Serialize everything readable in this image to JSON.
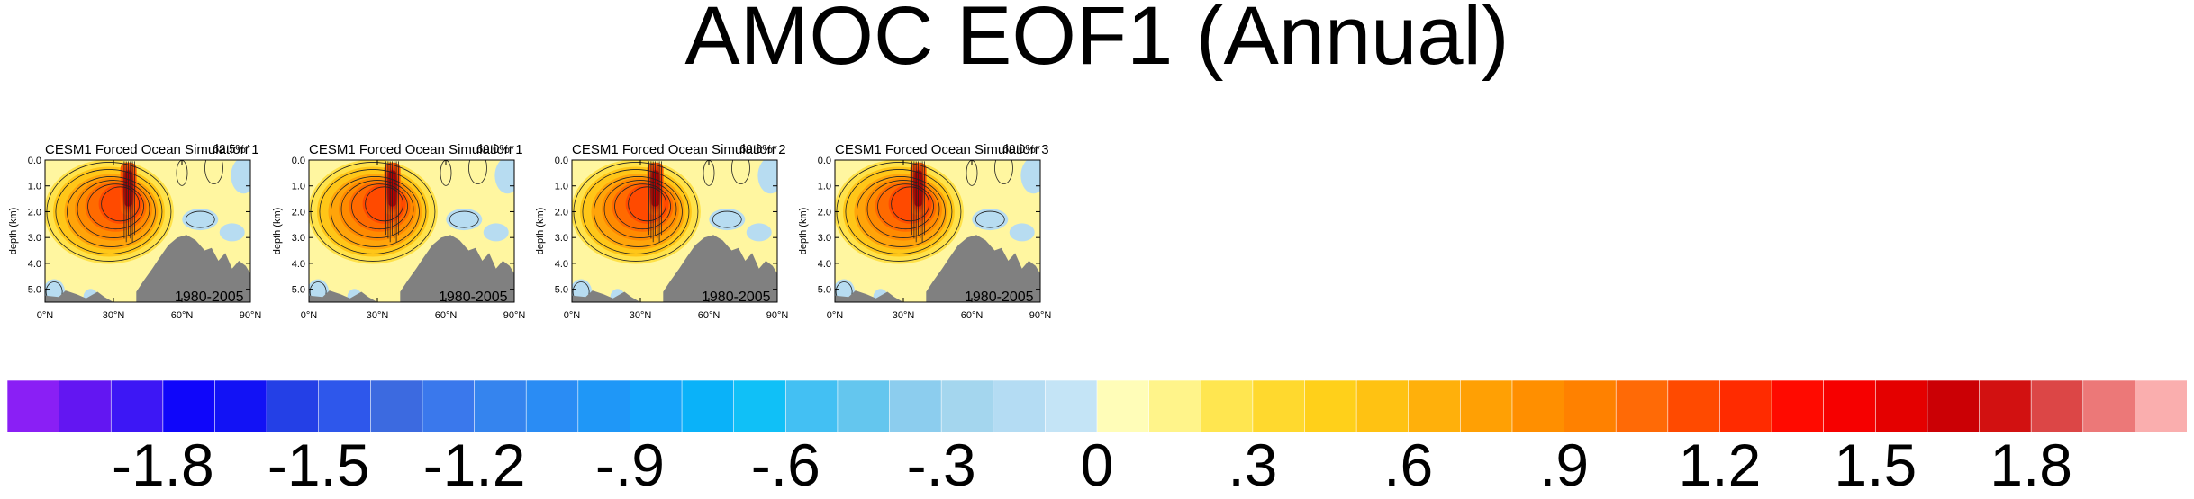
{
  "title": "AMOC EOF1 (Annual)",
  "chart_data": [
    {
      "type": "heatmap",
      "title": "CESM1 Forced Ocean Simulation 1",
      "percent_label": "62.5%*",
      "period_label": "1980-2005",
      "ylabel": "depth (km)",
      "y_ticks": [
        "0.0",
        "1.0",
        "2.0",
        "3.0",
        "4.0",
        "5.0"
      ],
      "x_ticks": [
        "0°N",
        "30°N",
        "60°N",
        "90°N"
      ],
      "xlim": [
        0,
        90
      ],
      "ylim": [
        0,
        5.5
      ]
    },
    {
      "type": "heatmap",
      "title": "CESM1 Forced Ocean Simulation 1",
      "percent_label": "60.0%*",
      "period_label": "1980-2005",
      "ylabel": "depth (km)",
      "y_ticks": [
        "0.0",
        "1.0",
        "2.0",
        "3.0",
        "4.0",
        "5.0"
      ],
      "x_ticks": [
        "0°N",
        "30°N",
        "60°N",
        "90°N"
      ],
      "xlim": [
        0,
        90
      ],
      "ylim": [
        0,
        5.5
      ]
    },
    {
      "type": "heatmap",
      "title": "CESM1 Forced Ocean Simulation 2",
      "percent_label": "60.6%*",
      "period_label": "1980-2005",
      "ylabel": "depth (km)",
      "y_ticks": [
        "0.0",
        "1.0",
        "2.0",
        "3.0",
        "4.0",
        "5.0"
      ],
      "x_ticks": [
        "0°N",
        "30°N",
        "60°N",
        "90°N"
      ],
      "xlim": [
        0,
        90
      ],
      "ylim": [
        0,
        5.5
      ]
    },
    {
      "type": "heatmap",
      "title": "CESM1 Forced Ocean Simulation 3",
      "percent_label": "60.0%*",
      "period_label": "1980-2005",
      "ylabel": "depth (km)",
      "y_ticks": [
        "0.0",
        "1.0",
        "2.0",
        "3.0",
        "4.0",
        "5.0"
      ],
      "x_ticks": [
        "0°N",
        "30°N",
        "60°N",
        "90°N"
      ],
      "xlim": [
        0,
        90
      ],
      "ylim": [
        0,
        5.5
      ]
    }
  ],
  "colorbar": {
    "colors": [
      "#8a1ff5",
      "#6316f2",
      "#3d17f5",
      "#0f06fa",
      "#1212f5",
      "#2440e6",
      "#2e57eb",
      "#3c6ae0",
      "#3a78ec",
      "#3584ee",
      "#2a8cf4",
      "#1f97f7",
      "#16a4fa",
      "#0ab2f9",
      "#10c0f7",
      "#43c0f3",
      "#64c6ee",
      "#8ccdee",
      "#a4d6ee",
      "#b4dcf3",
      "#c4e4f6",
      "#fffdb8",
      "#fff48a",
      "#ffe650",
      "#ffd92e",
      "#ffd01a",
      "#ffc212",
      "#ffb00b",
      "#ffa004",
      "#ff8f00",
      "#ff8100",
      "#ff6a06",
      "#ff4a00",
      "#ff2b00",
      "#ff0a00",
      "#f60000",
      "#e40000",
      "#cb0005",
      "#d21111",
      "#dc4646",
      "#ec7878",
      "#faaeae"
    ],
    "labels": [
      "-1.8",
      "-1.5",
      "-1.2",
      "-.9",
      "-.6",
      "-.3",
      "0",
      ".3",
      ".6",
      ".9",
      "1.2",
      "1.5",
      "1.8"
    ],
    "label_values": [
      -1.8,
      -1.5,
      -1.2,
      -0.9,
      -0.6,
      -0.3,
      0,
      0.3,
      0.6,
      0.9,
      1.2,
      1.5,
      1.8
    ],
    "range": [
      -2.1,
      2.1
    ]
  }
}
